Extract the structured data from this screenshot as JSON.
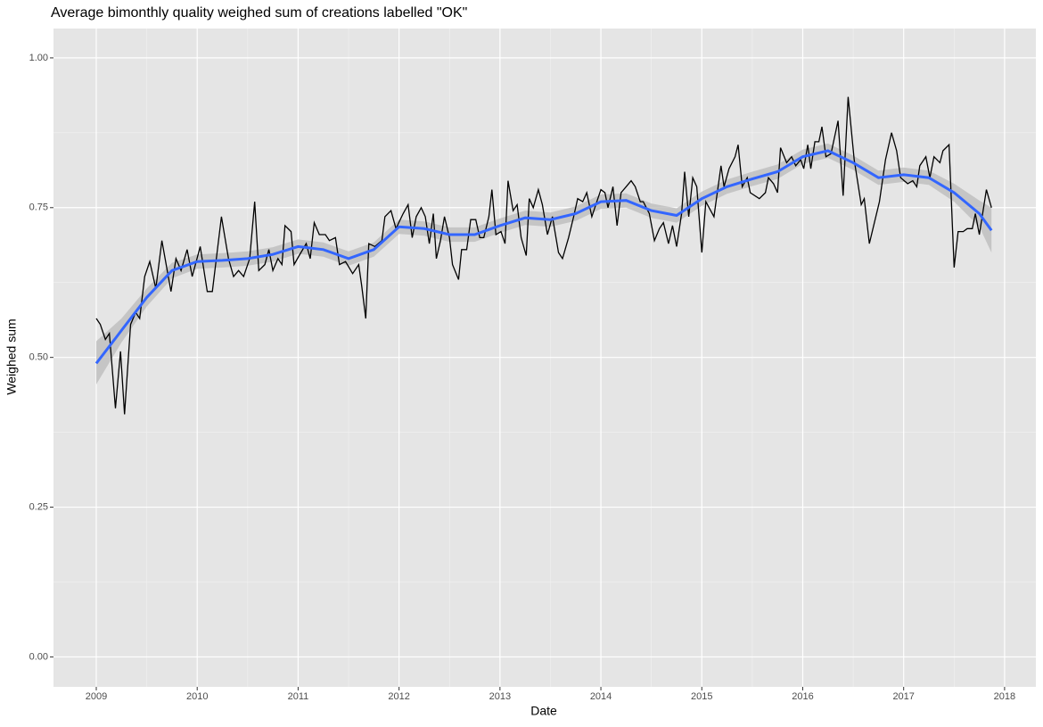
{
  "chart_data": {
    "type": "line",
    "title": "Average bimonthly quality weighed sum of creations labelled \"OK\"",
    "x_label": "Date",
    "y_label": "Weighed sum",
    "x": [
      2009.0,
      2009.04,
      2009.09,
      2009.13,
      2009.19,
      2009.24,
      2009.28,
      2009.34,
      2009.39,
      2009.43,
      2009.48,
      2009.53,
      2009.59,
      2009.65,
      2009.74,
      2009.79,
      2009.84,
      2009.9,
      2009.95,
      2010.03,
      2010.1,
      2010.15,
      2010.24,
      2010.31,
      2010.36,
      2010.41,
      2010.46,
      2010.52,
      2010.57,
      2010.61,
      2010.67,
      2010.71,
      2010.75,
      2010.8,
      2010.84,
      2010.87,
      2010.93,
      2010.96,
      2011.01,
      2011.08,
      2011.12,
      2011.16,
      2011.21,
      2011.27,
      2011.31,
      2011.37,
      2011.41,
      2011.47,
      2011.54,
      2011.6,
      2011.63,
      2011.67,
      2011.7,
      2011.76,
      2011.83,
      2011.86,
      2011.92,
      2011.97,
      2012.04,
      2012.09,
      2012.13,
      2012.17,
      2012.22,
      2012.26,
      2012.3,
      2012.34,
      2012.37,
      2012.41,
      2012.45,
      2012.5,
      2012.53,
      2012.59,
      2012.62,
      2012.67,
      2012.71,
      2012.76,
      2012.8,
      2012.84,
      2012.89,
      2012.92,
      2012.96,
      2013.01,
      2013.05,
      2013.08,
      2013.13,
      2013.17,
      2013.21,
      2013.26,
      2013.29,
      2013.33,
      2013.38,
      2013.42,
      2013.47,
      2013.52,
      2013.58,
      2013.62,
      2013.68,
      2013.73,
      2013.77,
      2013.82,
      2013.86,
      2013.91,
      2013.96,
      2014.0,
      2014.04,
      2014.07,
      2014.12,
      2014.16,
      2014.2,
      2014.25,
      2014.3,
      2014.34,
      2014.39,
      2014.42,
      2014.48,
      2014.53,
      2014.58,
      2014.62,
      2014.67,
      2014.71,
      2014.75,
      2014.8,
      2014.83,
      2014.87,
      2014.91,
      2014.95,
      2015.0,
      2015.04,
      2015.12,
      2015.19,
      2015.22,
      2015.27,
      2015.33,
      2015.36,
      2015.4,
      2015.45,
      2015.48,
      2015.57,
      2015.63,
      2015.66,
      2015.71,
      2015.75,
      2015.78,
      2015.84,
      2015.89,
      2015.93,
      2015.98,
      2016.01,
      2016.05,
      2016.08,
      2016.12,
      2016.16,
      2016.19,
      2016.23,
      2016.28,
      2016.35,
      2016.4,
      2016.45,
      2016.51,
      2016.58,
      2016.61,
      2016.66,
      2016.76,
      2016.82,
      2016.88,
      2016.93,
      2016.97,
      2017.04,
      2017.09,
      2017.13,
      2017.16,
      2017.22,
      2017.26,
      2017.3,
      2017.36,
      2017.39,
      2017.45,
      2017.5,
      2017.54,
      2017.59,
      2017.63,
      2017.68,
      2017.71,
      2017.75,
      2017.82,
      2017.87
    ],
    "values": [
      0.565,
      0.555,
      0.53,
      0.54,
      0.415,
      0.51,
      0.405,
      0.555,
      0.575,
      0.565,
      0.635,
      0.66,
      0.615,
      0.695,
      0.61,
      0.665,
      0.645,
      0.68,
      0.635,
      0.685,
      0.61,
      0.61,
      0.735,
      0.665,
      0.635,
      0.645,
      0.635,
      0.665,
      0.76,
      0.645,
      0.655,
      0.68,
      0.645,
      0.665,
      0.655,
      0.72,
      0.71,
      0.655,
      0.67,
      0.69,
      0.665,
      0.725,
      0.705,
      0.705,
      0.695,
      0.7,
      0.655,
      0.66,
      0.64,
      0.655,
      0.62,
      0.565,
      0.69,
      0.685,
      0.695,
      0.735,
      0.745,
      0.715,
      0.74,
      0.755,
      0.7,
      0.735,
      0.75,
      0.735,
      0.69,
      0.74,
      0.665,
      0.695,
      0.735,
      0.7,
      0.655,
      0.63,
      0.68,
      0.68,
      0.73,
      0.73,
      0.7,
      0.7,
      0.735,
      0.78,
      0.705,
      0.71,
      0.69,
      0.795,
      0.745,
      0.755,
      0.7,
      0.67,
      0.765,
      0.75,
      0.78,
      0.755,
      0.705,
      0.735,
      0.675,
      0.665,
      0.7,
      0.735,
      0.765,
      0.76,
      0.775,
      0.735,
      0.76,
      0.78,
      0.775,
      0.75,
      0.785,
      0.72,
      0.775,
      0.785,
      0.795,
      0.785,
      0.76,
      0.76,
      0.74,
      0.695,
      0.715,
      0.725,
      0.69,
      0.72,
      0.685,
      0.74,
      0.81,
      0.735,
      0.8,
      0.785,
      0.675,
      0.76,
      0.735,
      0.82,
      0.785,
      0.815,
      0.835,
      0.855,
      0.785,
      0.8,
      0.775,
      0.765,
      0.775,
      0.8,
      0.79,
      0.775,
      0.85,
      0.825,
      0.835,
      0.82,
      0.83,
      0.815,
      0.855,
      0.815,
      0.86,
      0.86,
      0.885,
      0.835,
      0.84,
      0.895,
      0.77,
      0.935,
      0.83,
      0.755,
      0.765,
      0.69,
      0.76,
      0.83,
      0.875,
      0.845,
      0.8,
      0.79,
      0.795,
      0.785,
      0.82,
      0.835,
      0.8,
      0.835,
      0.825,
      0.845,
      0.855,
      0.65,
      0.71,
      0.71,
      0.715,
      0.715,
      0.74,
      0.705,
      0.78,
      0.75
    ],
    "color": "#000000",
    "smooth": {
      "color": "#3366ff",
      "band_color": "#bdbdbd",
      "x": [
        2009.0,
        2009.25,
        2009.5,
        2009.75,
        2010.0,
        2010.25,
        2010.5,
        2010.75,
        2011.0,
        2011.25,
        2011.5,
        2011.75,
        2012.0,
        2012.25,
        2012.5,
        2012.75,
        2013.0,
        2013.25,
        2013.5,
        2013.75,
        2014.0,
        2014.25,
        2014.5,
        2014.75,
        2015.0,
        2015.25,
        2015.5,
        2015.75,
        2016.0,
        2016.25,
        2016.5,
        2016.75,
        2017.0,
        2017.25,
        2017.5,
        2017.75,
        2017.87
      ],
      "values": [
        0.49,
        0.545,
        0.6,
        0.645,
        0.66,
        0.662,
        0.665,
        0.672,
        0.685,
        0.68,
        0.665,
        0.68,
        0.718,
        0.715,
        0.705,
        0.705,
        0.72,
        0.733,
        0.73,
        0.74,
        0.76,
        0.762,
        0.745,
        0.737,
        0.765,
        0.785,
        0.798,
        0.81,
        0.835,
        0.845,
        0.825,
        0.8,
        0.805,
        0.8,
        0.775,
        0.74,
        0.712
      ],
      "lower": [
        0.455,
        0.525,
        0.585,
        0.632,
        0.648,
        0.65,
        0.653,
        0.66,
        0.673,
        0.668,
        0.653,
        0.668,
        0.706,
        0.703,
        0.693,
        0.693,
        0.708,
        0.721,
        0.718,
        0.728,
        0.748,
        0.75,
        0.733,
        0.725,
        0.753,
        0.773,
        0.786,
        0.798,
        0.823,
        0.833,
        0.813,
        0.788,
        0.793,
        0.788,
        0.76,
        0.718,
        0.675
      ],
      "upper": [
        0.527,
        0.565,
        0.615,
        0.658,
        0.672,
        0.674,
        0.677,
        0.684,
        0.697,
        0.692,
        0.677,
        0.692,
        0.73,
        0.727,
        0.717,
        0.717,
        0.732,
        0.745,
        0.742,
        0.752,
        0.772,
        0.774,
        0.757,
        0.749,
        0.777,
        0.797,
        0.81,
        0.822,
        0.847,
        0.857,
        0.837,
        0.812,
        0.817,
        0.812,
        0.79,
        0.762,
        0.75
      ]
    },
    "xlim": [
      2008.576,
      2018.31
    ],
    "xticks": [
      2009,
      2010,
      2011,
      2012,
      2013,
      2014,
      2015,
      2016,
      2017,
      2018
    ],
    "ylim": [
      -0.05,
      1.049
    ],
    "yticks": [
      {
        "value": 0,
        "label": "0.00"
      },
      {
        "value": 0.25,
        "label": "0.25"
      },
      {
        "value": 0.5,
        "label": "0.50"
      },
      {
        "value": 0.75,
        "label": "0.75"
      },
      {
        "value": 1,
        "label": "1.00"
      }
    ],
    "grid": true
  }
}
